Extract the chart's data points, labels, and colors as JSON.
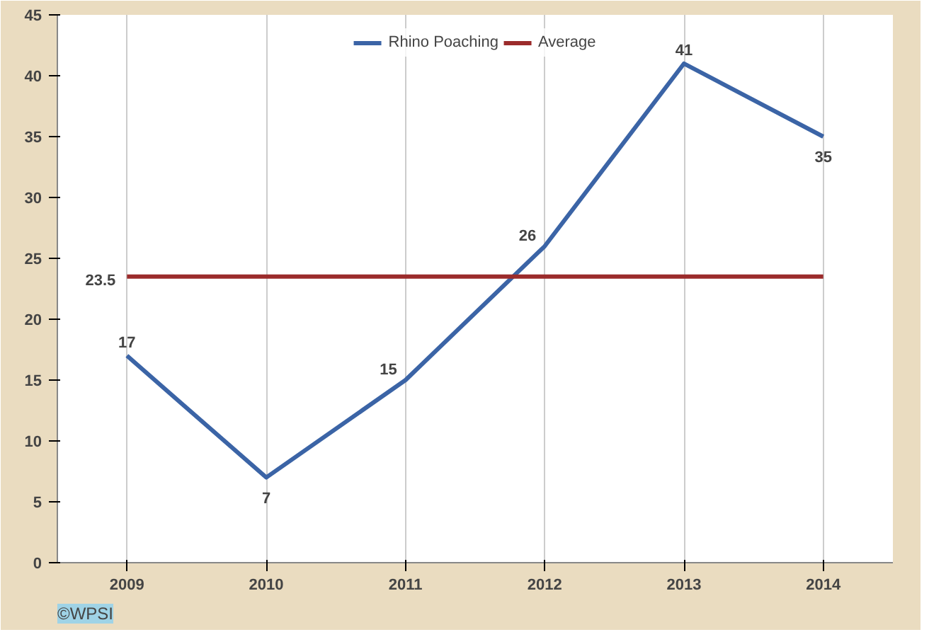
{
  "chart_data": {
    "type": "line",
    "categories": [
      "2009",
      "2010",
      "2011",
      "2012",
      "2013",
      "2014"
    ],
    "series": [
      {
        "name": "Rhino Poaching",
        "color": "#3b64a6",
        "values": [
          17,
          7,
          15,
          26,
          41,
          35
        ],
        "value_labels": [
          "17",
          "7",
          "15",
          "26",
          "41",
          "35"
        ]
      },
      {
        "name": "Average",
        "color": "#9b2b2b",
        "values": [
          23.5,
          23.5,
          23.5,
          23.5,
          23.5,
          23.5
        ],
        "value_labels": [
          "23.5",
          null,
          null,
          null,
          null,
          null
        ]
      }
    ],
    "ylim": [
      0,
      45
    ],
    "yticks": [
      0,
      5,
      10,
      15,
      20,
      25,
      30,
      35,
      40,
      45
    ],
    "grid": "x",
    "legend": "top",
    "marker": "none",
    "line_style": "solid",
    "annotations": [
      "©WPSI"
    ]
  }
}
